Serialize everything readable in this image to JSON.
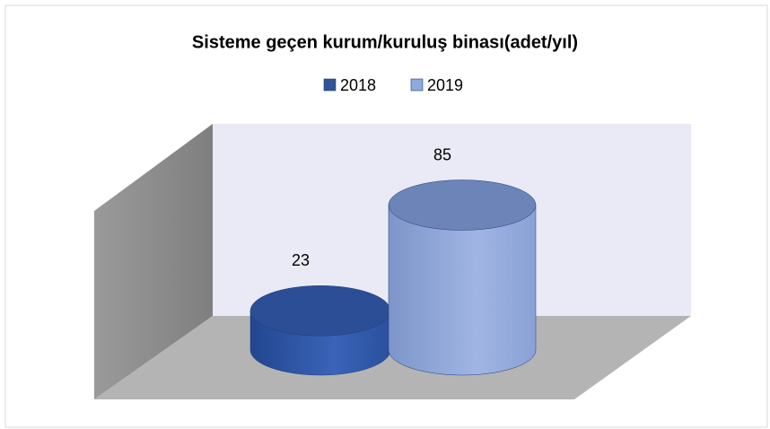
{
  "chart_data": {
    "type": "bar3d-cylinder",
    "title": "Sisteme geçen kurum/kuruluş binası(adet/yıl)",
    "series": [
      {
        "name": "2018",
        "color": "#2f5597",
        "values": [
          23
        ]
      },
      {
        "name": "2019",
        "color": "#8eaadb",
        "values": [
          85
        ]
      }
    ]
  }
}
